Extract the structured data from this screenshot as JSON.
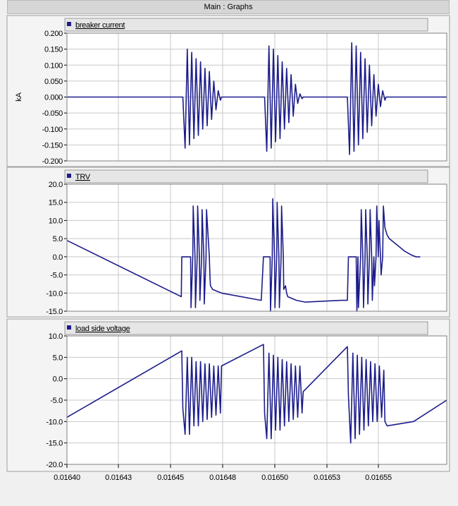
{
  "window": {
    "title": "Main : Graphs"
  },
  "colors": {
    "series": "#1c1c8c",
    "grid": "#c8c8c8",
    "plot_bg": "#ffffff",
    "header_bg": "#e6e6e6"
  },
  "chart_data": [
    {
      "type": "line",
      "legend": "breaker current",
      "ylabel": "kA",
      "ylim": [
        -0.2,
        0.2
      ],
      "yticks": [
        "0.200",
        "0.150",
        "0.100",
        "0.050",
        "0.000",
        "-0.050",
        "-0.100",
        "-0.150",
        "-0.200"
      ],
      "grid": true,
      "series": [
        {
          "name": "breaker current",
          "x": [
            0.0164,
            0.016452,
            0.0164525,
            0.0164535,
            0.0164545,
            0.0164555,
            0.0164565,
            0.0164575,
            0.0164585,
            0.0164595,
            0.0164605,
            0.0164615,
            0.0164625,
            0.0164635,
            0.0164645,
            0.0164655,
            0.0164665,
            0.0164675,
            0.0164685,
            0.0164695,
            0.01647,
            0.016489,
            0.0164895,
            0.0164905,
            0.0164915,
            0.0164925,
            0.0164935,
            0.0164945,
            0.0164955,
            0.0164965,
            0.0164975,
            0.0164985,
            0.0164995,
            0.0165005,
            0.0165015,
            0.0165025,
            0.0165035,
            0.0165045,
            0.0165055,
            0.0165065,
            0.016507,
            0.0165265,
            0.016527,
            0.016528,
            0.016529,
            0.01653,
            0.016531,
            0.016532,
            0.016533,
            0.016534,
            0.016535,
            0.016536,
            0.016537,
            0.016538,
            0.016539,
            0.01654,
            0.016541,
            0.016542,
            0.016543,
            0.016544,
            0.0165445,
            0.016572
          ],
          "y": [
            0,
            0,
            0,
            -0.16,
            0.15,
            -0.15,
            0.14,
            -0.13,
            0.12,
            -0.12,
            0.11,
            -0.1,
            0.09,
            -0.09,
            0.08,
            -0.07,
            0.05,
            -0.04,
            0.02,
            -0.01,
            0,
            0,
            0,
            -0.17,
            0.16,
            -0.16,
            0.15,
            -0.14,
            0.13,
            -0.13,
            0.11,
            -0.1,
            0.09,
            -0.08,
            0.07,
            -0.06,
            0.04,
            -0.02,
            0.01,
            -0.005,
            0,
            0,
            0,
            -0.18,
            0.17,
            -0.17,
            0.16,
            -0.15,
            0.14,
            -0.13,
            0.12,
            -0.11,
            0.1,
            -0.09,
            0.07,
            -0.06,
            0.04,
            -0.03,
            0.02,
            -0.01,
            0,
            0
          ]
        }
      ]
    },
    {
      "type": "line",
      "legend": "TRV",
      "ylim": [
        -15,
        20
      ],
      "yticks": [
        "20.0",
        "15.0",
        "10.0",
        "5.0",
        "0.0",
        "-5.0",
        "-10.0",
        "-15.0"
      ],
      "grid": true,
      "series": [
        {
          "name": "TRV",
          "x": [
            0.0164,
            0.0164518,
            0.016452,
            0.016454,
            0.016456,
            0.0164562,
            0.016457,
            0.0164572,
            0.016458,
            0.0164582,
            0.016459,
            0.0164592,
            0.01646,
            0.0164602,
            0.016461,
            0.0164612,
            0.016462,
            0.0164622,
            0.016463,
            0.0164632,
            0.0164645,
            0.0164648,
            0.016465,
            0.016466,
            0.016468,
            0.01647,
            0.016488,
            0.016489,
            0.016491,
            0.016492,
            0.0164922,
            0.016493,
            0.0164932,
            0.016494,
            0.0164942,
            0.016495,
            0.0164952,
            0.016496,
            0.0164962,
            0.016497,
            0.0164972,
            0.016498,
            0.0164982,
            0.016499,
            0.0164995,
            0.0165,
            0.016502,
            0.016504,
            0.016508,
            0.016524,
            0.016527,
            0.0165275,
            0.0165305,
            0.016531,
            0.0165313,
            0.0165318,
            0.016532,
            0.016533,
            0.0165333,
            0.016534,
            0.0165343,
            0.016535,
            0.0165353,
            0.016536,
            0.0165363,
            0.016537,
            0.0165373,
            0.016538,
            0.0165383,
            0.016539,
            0.0165393,
            0.01654,
            0.0165403,
            0.016541,
            0.0165413,
            0.016542,
            0.0165423,
            0.016543,
            0.0165433,
            0.016544,
            0.016545,
            0.016546,
            0.016548,
            0.01655,
            0.016553,
            0.016556,
            0.016558,
            0.01656
          ],
          "y": [
            4.5,
            -11,
            0,
            0,
            0,
            -14,
            0,
            14,
            0,
            -14,
            0,
            14,
            0,
            -12,
            0,
            13,
            0,
            -13,
            0,
            13,
            0,
            -6,
            -8,
            -9,
            -9.5,
            -10,
            -12,
            0,
            0,
            0,
            -15,
            0,
            16,
            0,
            -14,
            0,
            15,
            0,
            -14,
            0,
            14,
            0,
            -9,
            -8,
            -10,
            -11,
            -11.5,
            -12,
            -12.5,
            -12,
            -12,
            0,
            0,
            0,
            -15,
            0,
            -14,
            0,
            13,
            0,
            -14,
            0,
            13,
            0,
            -13,
            0,
            13,
            0,
            -12,
            0,
            -8,
            0,
            14,
            0,
            10,
            0,
            -5,
            0,
            14,
            8,
            6,
            5,
            4,
            3,
            1.5,
            0.5,
            0,
            0
          ]
        }
      ]
    },
    {
      "type": "line",
      "legend": "load side voltage",
      "ylim": [
        -20,
        10
      ],
      "yticks": [
        "10.0",
        "5.0",
        "0.0",
        "-5.0",
        "-10.0",
        "-15.0",
        "-20.0"
      ],
      "xticks": [
        "0.01640",
        "0.01643",
        "0.01645",
        "0.01648",
        "0.01650",
        "0.01653",
        "0.01655"
      ],
      "xlim": [
        0.0164,
        0.016572
      ],
      "grid": true,
      "series": [
        {
          "name": "load side voltage",
          "x": [
            0.0164,
            0.016452,
            0.0164525,
            0.0164535,
            0.0164545,
            0.0164555,
            0.0164565,
            0.0164575,
            0.0164585,
            0.0164595,
            0.0164605,
            0.0164615,
            0.0164625,
            0.0164635,
            0.0164645,
            0.0164655,
            0.0164665,
            0.0164675,
            0.0164685,
            0.0164695,
            0.01647,
            0.016489,
            0.0164895,
            0.0164905,
            0.0164915,
            0.0164925,
            0.0164935,
            0.0164945,
            0.0164955,
            0.0164965,
            0.0164975,
            0.0164985,
            0.0164995,
            0.0165005,
            0.0165015,
            0.0165025,
            0.0165035,
            0.0165045,
            0.0165055,
            0.0165065,
            0.016507,
            0.016527,
            0.0165275,
            0.0165285,
            0.0165295,
            0.0165305,
            0.0165315,
            0.0165325,
            0.0165335,
            0.0165345,
            0.0165355,
            0.0165365,
            0.0165375,
            0.0165385,
            0.0165395,
            0.0165405,
            0.0165415,
            0.0165425,
            0.0165435,
            0.016544,
            0.016545,
            0.016557,
            0.016572
          ],
          "y": [
            -9,
            6.5,
            -7,
            -13,
            5,
            -13,
            5,
            -11,
            4,
            -11,
            4,
            -10,
            3.5,
            -9.5,
            3.5,
            -9,
            3,
            -8.5,
            3,
            -8,
            3,
            8,
            -8,
            -14,
            6,
            -14,
            5.5,
            -12,
            5,
            -12,
            4.5,
            -11,
            4,
            -10,
            3.5,
            -9.5,
            3,
            -9,
            3,
            -8,
            -3,
            7.5,
            -4,
            -15,
            6,
            -14,
            5.5,
            -13,
            5,
            -12,
            4.5,
            -11,
            4,
            -10,
            3.5,
            -10,
            3,
            -9,
            2,
            -10,
            -11,
            -10,
            -5
          ]
        }
      ]
    }
  ]
}
